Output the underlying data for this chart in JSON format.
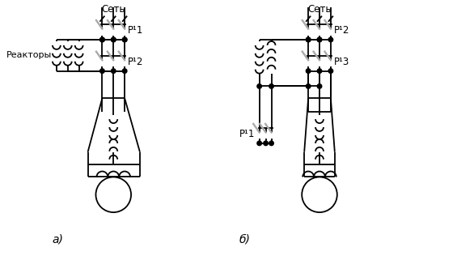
{
  "fig_width": 5.65,
  "fig_height": 3.16,
  "dpi": 100,
  "bg": "#ffffff",
  "lc": "#000000",
  "gc": "#aaaaaa",
  "lw": 1.3,
  "label_a": "а)",
  "label_b": "б)",
  "seti": "Сеть",
  "reaktory": "Реакторы",
  "p1_a": "Р¹1",
  "p2_a": "Р¹2",
  "p1_b": "Р¹1",
  "p2_b": "Р¹2",
  "p3_b": "Р¹3"
}
